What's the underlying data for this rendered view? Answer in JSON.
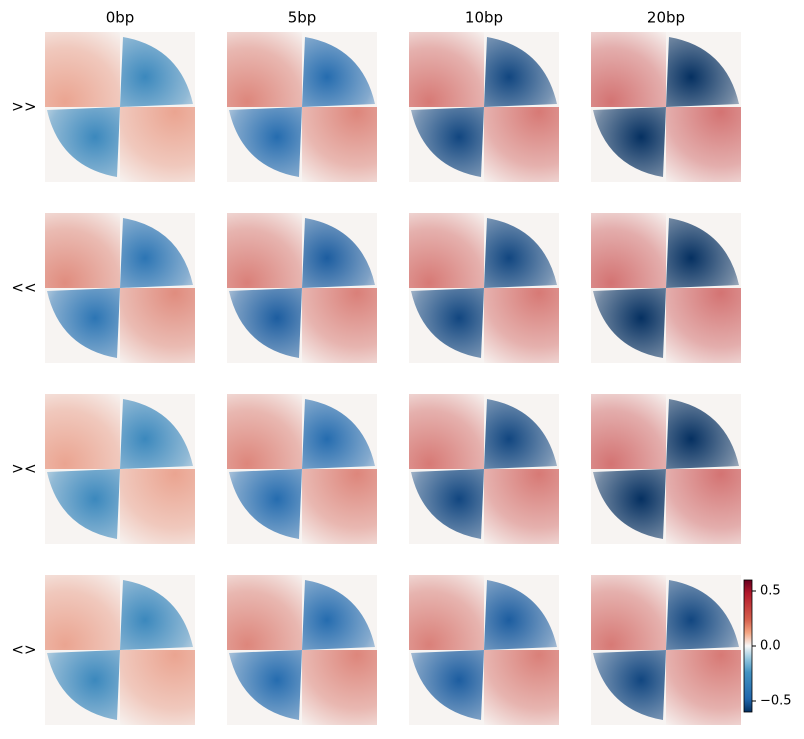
{
  "chart_data": {
    "type": "heatmap",
    "categories": [
      "0bp",
      "5bp",
      "10bp",
      "20bp"
    ],
    "series": [
      {
        "name": ">>",
        "values": [
          -0.3,
          -0.45,
          -0.55,
          -0.6
        ]
      },
      {
        "name": "<<",
        "values": [
          -0.4,
          -0.5,
          -0.55,
          -0.6
        ]
      },
      {
        "name": "><",
        "values": [
          -0.3,
          -0.45,
          -0.55,
          -0.6
        ]
      },
      {
        "name": "<>",
        "values": [
          -0.3,
          -0.45,
          -0.5,
          -0.55
        ]
      }
    ],
    "colormap": "RdBu_r",
    "clim": [
      -0.6,
      0.6
    ],
    "cticks": [
      0.5,
      {
        "value": 0,
        "label": "0.0"
      },
      {
        "value": -0.5,
        "label": "−0.5"
      }
    ]
  }
}
